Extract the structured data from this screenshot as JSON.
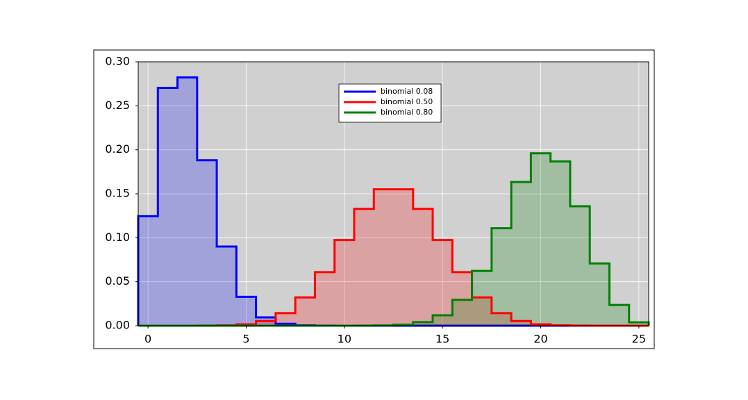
{
  "chart_data": {
    "type": "histogram",
    "bins": [
      -0.5,
      0.5,
      1.5,
      2.5,
      3.5,
      4.5,
      5.5,
      6.5,
      7.5,
      8.5,
      9.5,
      10.5,
      11.5,
      12.5,
      13.5,
      14.5,
      15.5,
      16.5,
      17.5,
      18.5,
      19.5,
      20.5,
      21.5,
      22.5,
      23.5,
      24.5,
      25.5
    ],
    "series": [
      {
        "name": "binomial 0.08",
        "color": "#0000ff",
        "values": [
          0.1244,
          0.2704,
          0.2822,
          0.1881,
          0.09,
          0.0329,
          0.0095,
          0.0022,
          0.0004,
          0.0001,
          0,
          0,
          0,
          0,
          0,
          0,
          0,
          0,
          0,
          0,
          0,
          0,
          0,
          0,
          0,
          0
        ]
      },
      {
        "name": "binomial 0.50",
        "color": "#ff0000",
        "values": [
          0,
          0,
          0,
          0.0001,
          0.0004,
          0.0016,
          0.0053,
          0.0143,
          0.0322,
          0.0609,
          0.0974,
          0.1328,
          0.155,
          0.155,
          0.1328,
          0.0974,
          0.0609,
          0.0322,
          0.0143,
          0.0053,
          0.0016,
          0.0004,
          0.0001,
          0,
          0,
          0
        ]
      },
      {
        "name": "binomial 0.80",
        "color": "#008000",
        "values": [
          0,
          0,
          0,
          0,
          0,
          0,
          0,
          0,
          0,
          0,
          0,
          0.0001,
          0.0003,
          0.0012,
          0.004,
          0.0118,
          0.0294,
          0.0623,
          0.1108,
          0.1633,
          0.196,
          0.1867,
          0.1358,
          0.0708,
          0.0236,
          0.0038
        ]
      }
    ],
    "xlim": [
      -0.5,
      25.5
    ],
    "ylim": [
      0,
      0.3
    ],
    "xticks": [
      0,
      5,
      10,
      15,
      20,
      25
    ],
    "yticks": [
      {
        "value": 0,
        "label": "0.00"
      },
      {
        "value": 0.05,
        "label": "0.05"
      },
      {
        "value": 0.1,
        "label": "0.10"
      },
      {
        "value": 0.15,
        "label": "0.15"
      },
      {
        "value": 0.2,
        "label": "0.20"
      },
      {
        "value": 0.25,
        "label": "0.25"
      },
      {
        "value": 0.3,
        "label": "0.30"
      }
    ],
    "grid": true,
    "legend": "upper center"
  }
}
